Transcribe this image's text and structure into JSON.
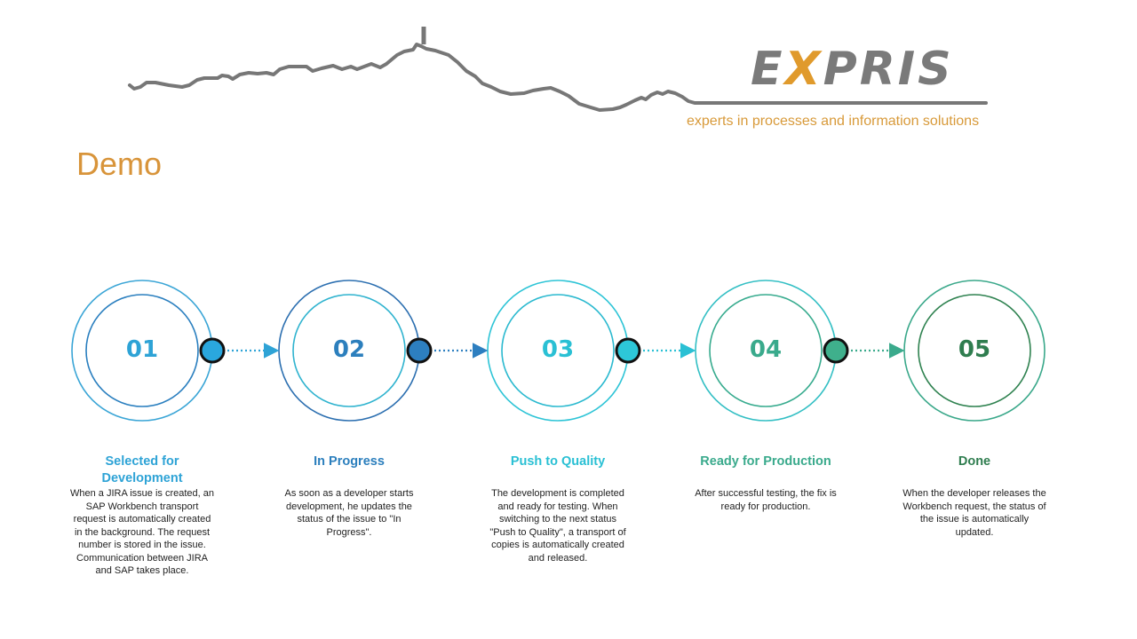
{
  "header": {
    "logo_left": "E",
    "logo_x": "X",
    "logo_right": "PRIS",
    "tagline": "experts in processes and information solutions",
    "skyline_color": "#777777"
  },
  "page_title": "Demo",
  "colors": {
    "brand_orange": "#e09a2c",
    "brand_grey": "#7a7a7a",
    "title_orange": "#d8943a"
  },
  "steps": [
    {
      "number": "01",
      "title": "Selected for Development",
      "title_lines": [
        "Selected for",
        "Development"
      ],
      "description": "When a JIRA issue is created, an SAP Workbench transport request is automatically created in the background. The request number is stored in the issue. Communication between JIRA and SAP takes place.",
      "desc_lines": [
        "When a JIRA issue is created, an",
        "SAP Workbench transport",
        "request is automatically created",
        "in the background. The request",
        "number is stored in the issue.",
        "Communication between JIRA",
        "and SAP takes place."
      ],
      "color": "#2ea3d6",
      "ring_outer": "#3aa5d6",
      "ring_inner": "#2a7fbf"
    },
    {
      "number": "02",
      "title": "In Progress",
      "title_lines": [
        "In Progress"
      ],
      "description": "As soon as a developer starts development, he updates the status of the issue to \"In Progress\".",
      "desc_lines": [
        "As soon as a developer starts",
        "development, he updates the",
        "status of the issue to \"In",
        "Progress\"."
      ],
      "color": "#2c7fbd",
      "ring_outer": "#2c6fb0",
      "ring_inner": "#2fb3cf"
    },
    {
      "number": "03",
      "title": "Push to Quality",
      "title_lines": [
        "Push to Quality"
      ],
      "description": "The development is completed and ready for testing. When switching to the next status \"Push to Quality\", a transport of copies is automatically created and released.",
      "desc_lines": [
        "The development is completed",
        "and ready for testing. When",
        "switching to the next status",
        "\"Push to Quality\", a transport of",
        "copies is automatically created",
        "and released."
      ],
      "color": "#2ac0d4",
      "ring_outer": "#2dc4d6",
      "ring_inner": "#2ab9cf"
    },
    {
      "number": "04",
      "title": "Ready for Production",
      "title_lines": [
        "Ready for Production"
      ],
      "description": "After successful testing, the fix is ready for production.",
      "desc_lines": [
        "After successful testing, the fix is",
        "ready for production."
      ],
      "color": "#3aaa8c",
      "ring_outer": "#33bfc4",
      "ring_inner": "#37ab8e"
    },
    {
      "number": "05",
      "title": "Done",
      "title_lines": [
        "Done"
      ],
      "description": "When the developer releases the Workbench request, the status of the issue is automatically updated.",
      "desc_lines": [
        "When the developer releases the",
        "Workbench request, the status of",
        "the issue is automatically",
        "updated."
      ],
      "color": "#2f7d4f",
      "ring_outer": "#3aa88a",
      "ring_inner": "#2f8250"
    }
  ],
  "connectors": [
    {
      "dot_color": "#2aa7de",
      "arrow_color": "#2ea3d6"
    },
    {
      "dot_color": "#2d7fc0",
      "arrow_color": "#2d7fc0"
    },
    {
      "dot_color": "#2dc7d8",
      "arrow_color": "#2ac0d4"
    },
    {
      "dot_color": "#3fb08c",
      "arrow_color": "#3aaa8c"
    }
  ]
}
